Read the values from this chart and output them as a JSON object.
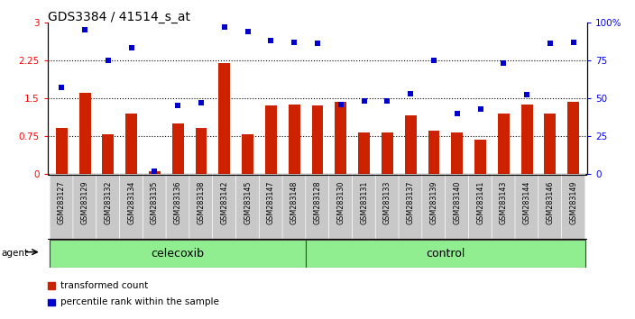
{
  "title": "GDS3384 / 41514_s_at",
  "samples": [
    "GSM283127",
    "GSM283129",
    "GSM283132",
    "GSM283134",
    "GSM283135",
    "GSM283136",
    "GSM283138",
    "GSM283142",
    "GSM283145",
    "GSM283147",
    "GSM283148",
    "GSM283128",
    "GSM283130",
    "GSM283131",
    "GSM283133",
    "GSM283137",
    "GSM283139",
    "GSM283140",
    "GSM283141",
    "GSM283143",
    "GSM283144",
    "GSM283146",
    "GSM283149"
  ],
  "bar_vals": [
    0.9,
    1.6,
    0.78,
    1.2,
    0.05,
    1.0,
    0.9,
    2.2,
    0.78,
    1.35,
    1.38,
    1.35,
    1.42,
    0.82,
    0.82,
    1.15,
    0.85,
    0.82,
    0.68,
    1.2,
    1.38,
    1.2,
    1.42
  ],
  "pct_vals": [
    57,
    95,
    75,
    83,
    2,
    45,
    47,
    97,
    94,
    88,
    87,
    86,
    46,
    48,
    48,
    53,
    75,
    40,
    43,
    73,
    52,
    86,
    87
  ],
  "bar_color": "#CC2200",
  "scatter_color": "#0000CC",
  "n_celecoxib": 11,
  "n_control": 12,
  "yticks_left": [
    0,
    0.75,
    1.5,
    2.25,
    3.0
  ],
  "ytick_labels_left": [
    "0",
    "0.75",
    "1.5",
    "2.25",
    "3"
  ],
  "yticks_right": [
    0,
    25,
    50,
    75,
    100
  ],
  "ytick_labels_right": [
    "0",
    "25",
    "50",
    "75",
    "100%"
  ],
  "hlines": [
    0.75,
    1.5,
    2.25
  ],
  "bar_width": 0.5,
  "green_color": "#90EE90",
  "xtick_bg": "#C8C8C8",
  "legend_bar": "transformed count",
  "legend_scatter": "percentile rank within the sample",
  "celecoxib_label": "celecoxib",
  "control_label": "control",
  "agent_label": "agent"
}
